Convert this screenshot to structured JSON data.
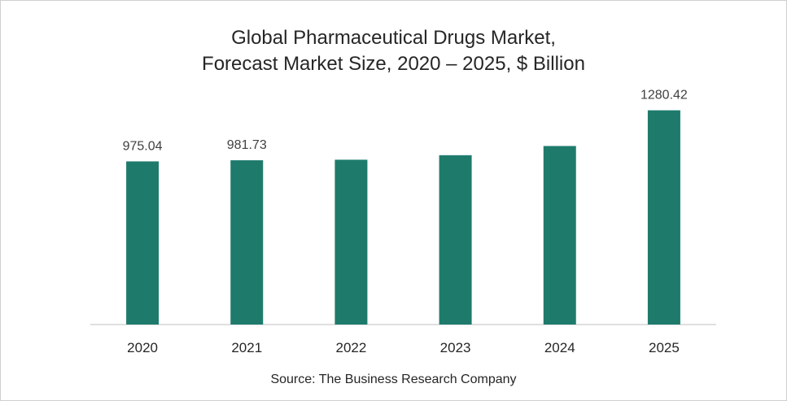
{
  "chart_data": {
    "type": "bar",
    "title": "Global Pharmaceutical Drugs Market,",
    "subtitle": "Forecast Market Size, 2020 – 2025, $ Billion",
    "categories": [
      "2020",
      "2021",
      "2022",
      "2023",
      "2024",
      "2025"
    ],
    "values": [
      975.04,
      981.73,
      985,
      1012,
      1067,
      1280.42
    ],
    "data_labels": [
      "975.04",
      "981.73",
      "",
      "",
      "",
      "1280.42"
    ],
    "ylim": [
      0,
      1400
    ],
    "grid": false,
    "legend": "none",
    "bar_color": "#1e7b6c",
    "source": "Source: The Business Research Company"
  }
}
